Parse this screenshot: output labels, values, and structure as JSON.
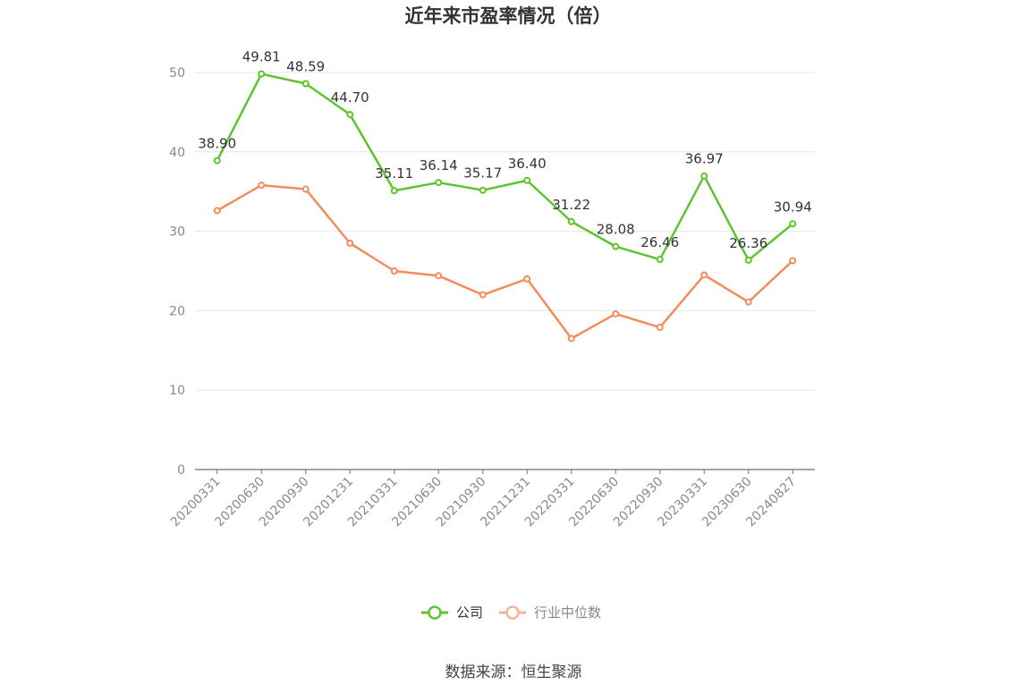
{
  "chart_data": {
    "type": "line",
    "title": "近年来市盈率情况（倍）",
    "xlabel": "",
    "ylabel": "",
    "ylim": [
      0,
      50
    ],
    "yticks": [
      0,
      10,
      20,
      30,
      40,
      50
    ],
    "grid": true,
    "legend_position": "bottom",
    "categories": [
      "20200331",
      "20200630",
      "20200930",
      "20201231",
      "20210331",
      "20210630",
      "20210930",
      "20211231",
      "20220331",
      "20220630",
      "20220930",
      "20230331",
      "20230630",
      "20240827"
    ],
    "series": [
      {
        "name": "公司",
        "color": "#5ec42e",
        "show_labels": true,
        "values": [
          38.9,
          49.81,
          48.59,
          44.7,
          35.11,
          36.14,
          35.17,
          36.4,
          31.22,
          28.08,
          26.46,
          36.97,
          26.36,
          30.94
        ],
        "labels": [
          "38.90",
          "49.81",
          "48.59",
          "44.70",
          "35.11",
          "36.14",
          "35.17",
          "36.40",
          "31.22",
          "28.08",
          "26.46",
          "36.97",
          "26.36",
          "30.94"
        ]
      },
      {
        "name": "行业中位数",
        "color": "#f28c5c",
        "show_labels": false,
        "values": [
          32.6,
          35.8,
          35.3,
          28.5,
          25.0,
          24.4,
          22.0,
          24.0,
          16.5,
          19.6,
          17.9,
          24.5,
          21.1,
          26.3
        ]
      }
    ],
    "source": "数据来源：恒生聚源"
  },
  "legend": {
    "company_label": "公司",
    "industry_label": "行业中位数",
    "company_color": "#5ec42e",
    "industry_color": "#f5b49a"
  }
}
